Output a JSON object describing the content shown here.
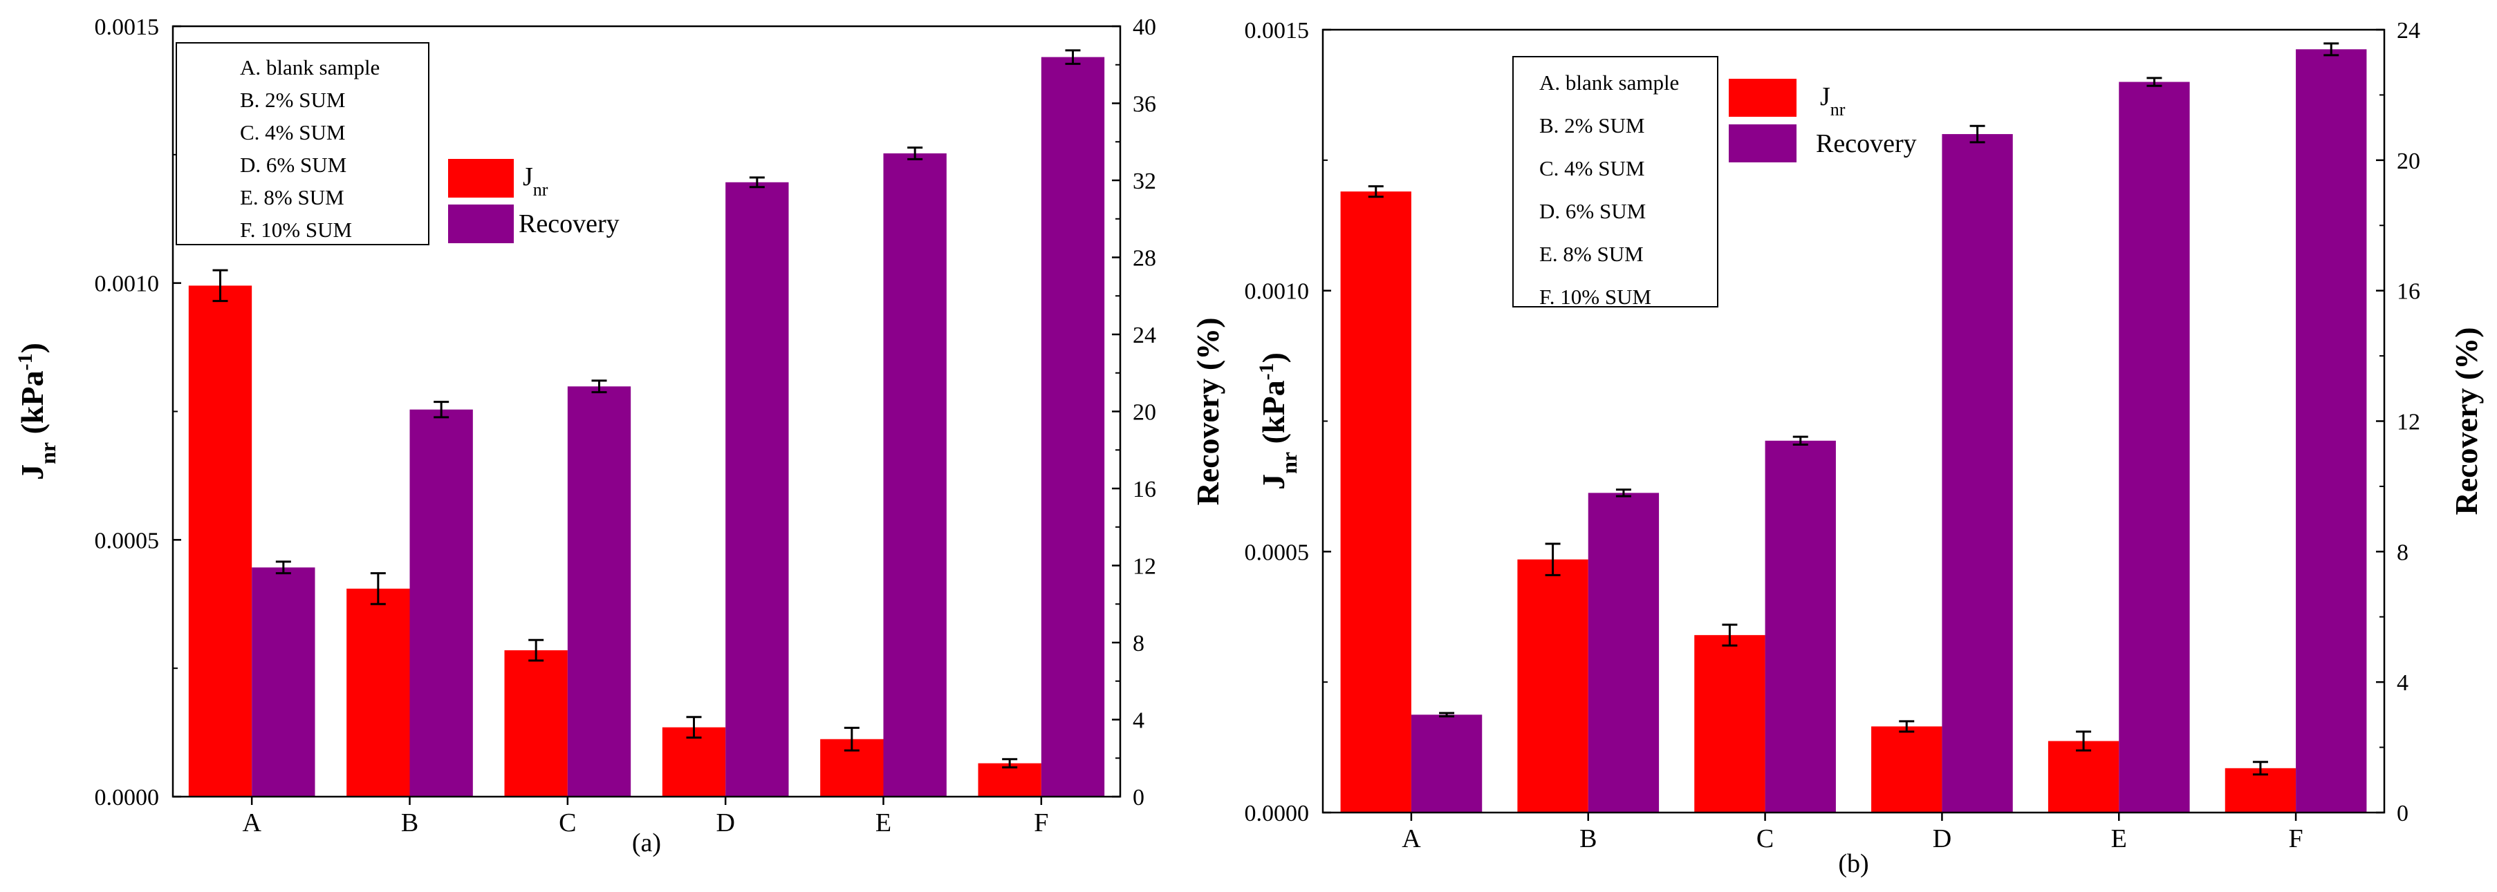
{
  "chart_data": [
    {
      "type": "bar",
      "caption": "(a)",
      "categories": [
        "A",
        "B",
        "C",
        "D",
        "E",
        "F"
      ],
      "legend_box": [
        "A. blank sample",
        "B. 2%  SUM",
        "C. 4% SUM",
        "D. 6% SUM",
        "E. 8% SUM",
        "F. 10% SUM"
      ],
      "series_legend": {
        "jnr_main": "J",
        "jnr_sub": "nr",
        "recovery": "Recovery"
      },
      "ylabel_left": {
        "main": "J",
        "sub": "nr",
        "unit_open": " (kPa",
        "unit_sup": "-1",
        "unit_close": ")"
      },
      "ylabel_right": "Recovery (%)",
      "ylim_left": [
        0,
        0.0015
      ],
      "ylim_right": [
        0,
        40
      ],
      "yticks_left": [
        "0.0000",
        "0.0005",
        "0.0010",
        "0.0015"
      ],
      "yticks_right": [
        "0",
        "4",
        "8",
        "12",
        "16",
        "20",
        "24",
        "28",
        "32",
        "36",
        "40"
      ],
      "series": [
        {
          "name": "Jnr",
          "axis": "left",
          "color": "#ff0000",
          "values": [
            0.000995,
            0.000405,
            0.000285,
            0.000135,
            0.000112,
            6.5e-05
          ],
          "errors": [
            3e-05,
            3e-05,
            2e-05,
            2e-05,
            2.2e-05,
            8e-06
          ]
        },
        {
          "name": "Recovery",
          "axis": "right",
          "color": "#8b008b",
          "values": [
            11.9,
            20.1,
            21.3,
            31.9,
            33.4,
            38.4
          ],
          "errors": [
            0.3,
            0.4,
            0.3,
            0.25,
            0.3,
            0.35
          ]
        }
      ]
    },
    {
      "type": "bar",
      "caption": "(b)",
      "categories": [
        "A",
        "B",
        "C",
        "D",
        "E",
        "F"
      ],
      "legend_box": [
        "A. blank sample",
        "B. 2% SUM",
        "C. 4% SUM",
        "D. 6% SUM",
        "E. 8% SUM",
        "F. 10% SUM"
      ],
      "series_legend": {
        "jnr_main": "J",
        "jnr_sub": "nr",
        "recovery": "Recovery"
      },
      "ylabel_left": {
        "main": "J",
        "sub": "nr",
        "unit_open": " (kPa",
        "unit_sup": "-1",
        "unit_close": ")"
      },
      "ylabel_right": "Recovery (%)",
      "ylim_left": [
        0,
        0.0015
      ],
      "ylim_right": [
        0,
        24
      ],
      "yticks_left": [
        "0.0000",
        "0.0005",
        "0.0010",
        "0.0015"
      ],
      "yticks_right": [
        "0",
        "4",
        "8",
        "12",
        "16",
        "20",
        "24"
      ],
      "series": [
        {
          "name": "Jnr",
          "axis": "left",
          "color": "#ff0000",
          "values": [
            0.00119,
            0.000485,
            0.00034,
            0.000165,
            0.000137,
            8.5e-05
          ],
          "errors": [
            1e-05,
            3e-05,
            2e-05,
            1e-05,
            1.8e-05,
            1.2e-05
          ]
        },
        {
          "name": "Recovery",
          "axis": "right",
          "color": "#8b008b",
          "values": [
            3.0,
            9.8,
            11.4,
            20.8,
            22.4,
            23.4
          ],
          "errors": [
            0.05,
            0.1,
            0.12,
            0.25,
            0.12,
            0.18
          ]
        }
      ]
    }
  ]
}
